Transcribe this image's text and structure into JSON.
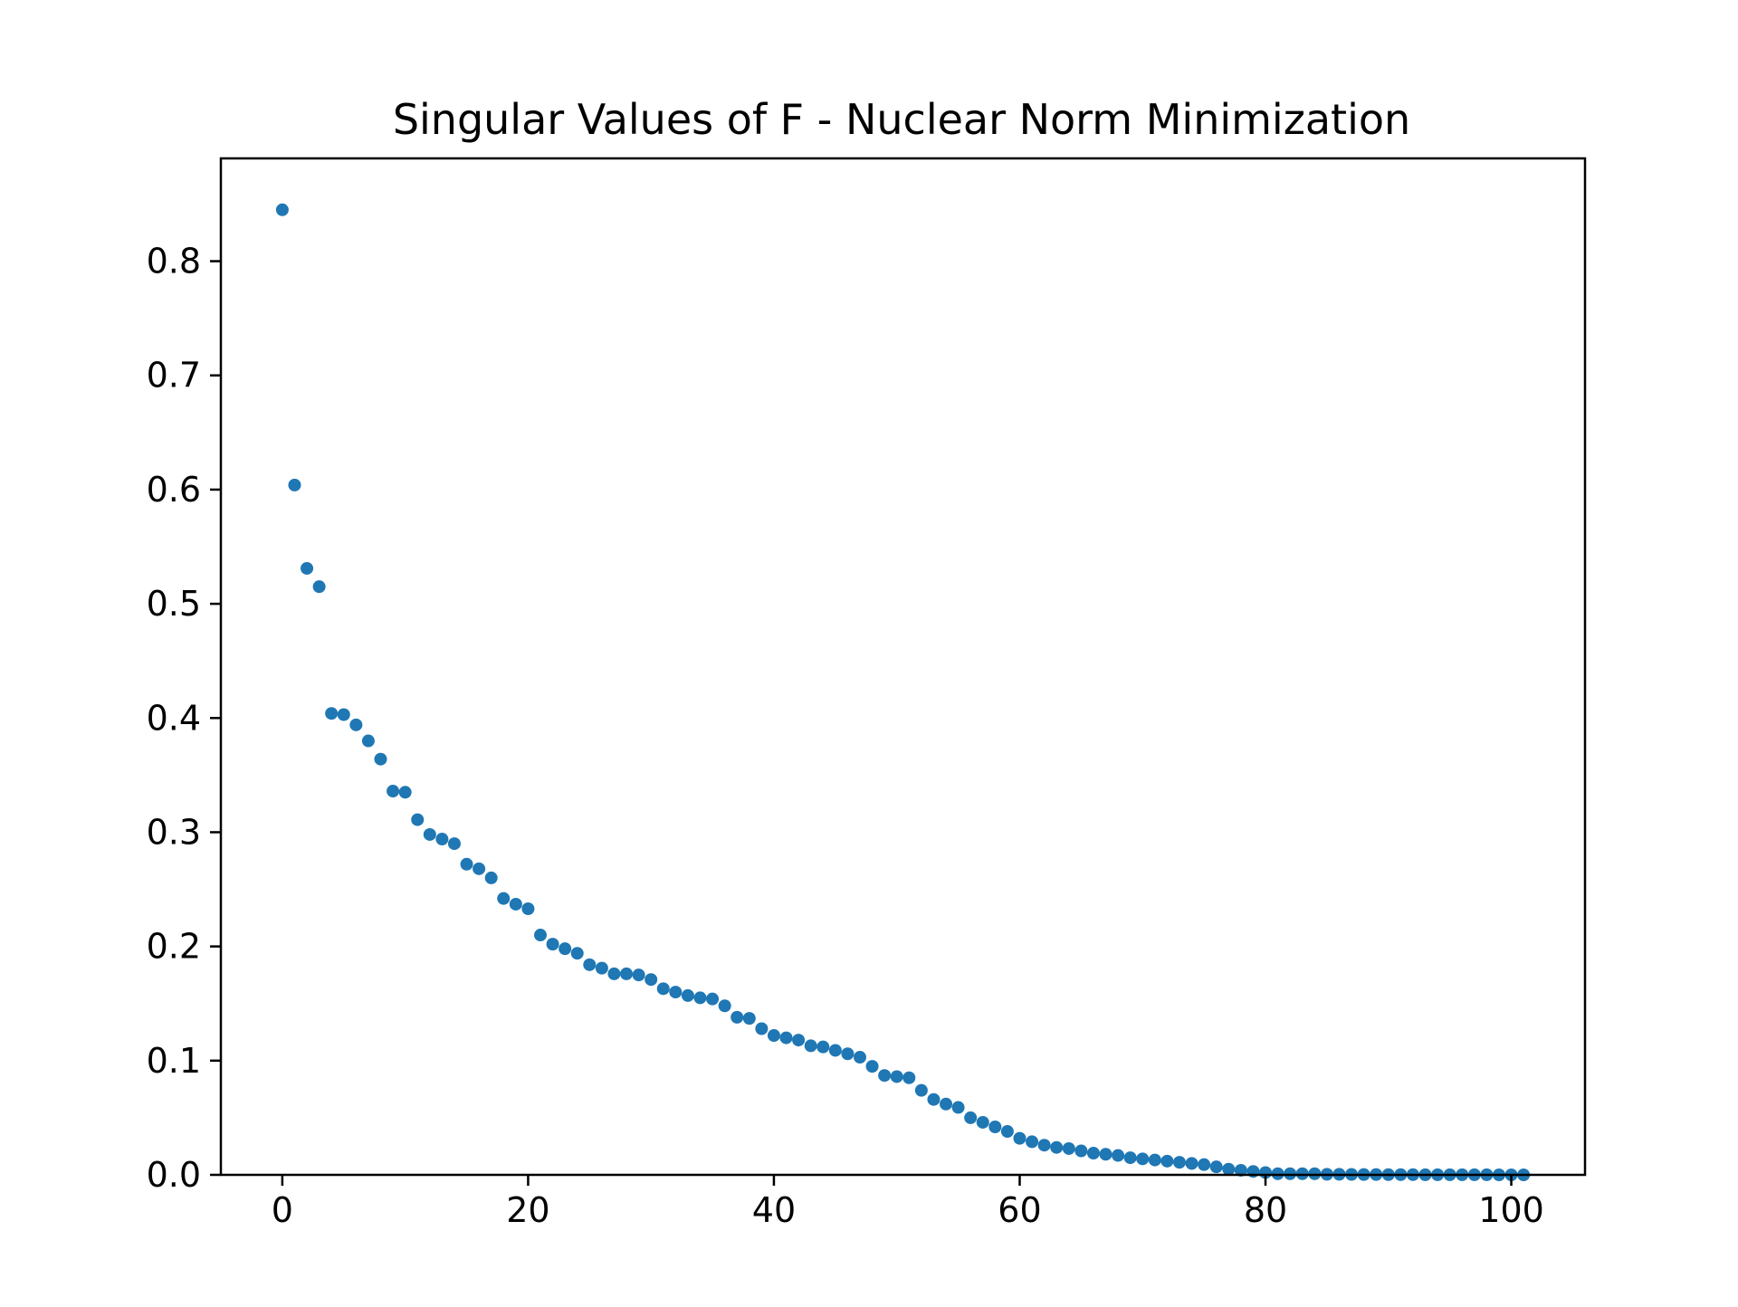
{
  "chart_data": {
    "type": "scatter",
    "title": "Singular Values of F - Nuclear Norm Minimization",
    "xlabel": "",
    "ylabel": "",
    "xlim": [
      -5,
      106
    ],
    "ylim": [
      0,
      0.89
    ],
    "xticks": [
      0,
      20,
      40,
      60,
      80,
      100
    ],
    "yticks": [
      0.0,
      0.1,
      0.2,
      0.3,
      0.4,
      0.5,
      0.6,
      0.7,
      0.8
    ],
    "xtick_labels": [
      "0",
      "20",
      "40",
      "60",
      "80",
      "100"
    ],
    "ytick_labels": [
      "0.0",
      "0.1",
      "0.2",
      "0.3",
      "0.4",
      "0.5",
      "0.6",
      "0.7",
      "0.8"
    ],
    "grid": false,
    "legend": "none",
    "marker_color": "#1f77b4",
    "series": [
      {
        "x": [
          0,
          1,
          2,
          3,
          4,
          5,
          6,
          7,
          8,
          9,
          10,
          11,
          12,
          13,
          14,
          15,
          16,
          17,
          18,
          19,
          20,
          21,
          22,
          23,
          24,
          25,
          26,
          27,
          28,
          29,
          30,
          31,
          32,
          33,
          34,
          35,
          36,
          37,
          38,
          39,
          40,
          41,
          42,
          43,
          44,
          45,
          46,
          47,
          48,
          49,
          50,
          51,
          52,
          53,
          54,
          55,
          56,
          57,
          58,
          59,
          60,
          61,
          62,
          63,
          64,
          65,
          66,
          67,
          68,
          69,
          70,
          71,
          72,
          73,
          74,
          75,
          76,
          77,
          78,
          79,
          80,
          81,
          82,
          83,
          84,
          85,
          86,
          87,
          88,
          89,
          90,
          91,
          92,
          93,
          94,
          95,
          96,
          97,
          98,
          99,
          100,
          101
        ],
        "y": [
          0.845,
          0.604,
          0.531,
          0.515,
          0.404,
          0.403,
          0.394,
          0.38,
          0.364,
          0.336,
          0.335,
          0.311,
          0.298,
          0.294,
          0.29,
          0.272,
          0.268,
          0.26,
          0.242,
          0.237,
          0.233,
          0.21,
          0.202,
          0.198,
          0.194,
          0.184,
          0.181,
          0.176,
          0.176,
          0.175,
          0.171,
          0.163,
          0.16,
          0.157,
          0.155,
          0.154,
          0.148,
          0.138,
          0.137,
          0.128,
          0.122,
          0.12,
          0.118,
          0.113,
          0.112,
          0.109,
          0.106,
          0.103,
          0.095,
          0.087,
          0.086,
          0.085,
          0.074,
          0.066,
          0.062,
          0.059,
          0.05,
          0.046,
          0.042,
          0.038,
          0.032,
          0.029,
          0.026,
          0.024,
          0.023,
          0.021,
          0.019,
          0.018,
          0.017,
          0.015,
          0.014,
          0.013,
          0.012,
          0.011,
          0.01,
          0.009,
          0.007,
          0.005,
          0.004,
          0.003,
          0.002,
          0.001,
          0.001,
          0.001,
          0.001,
          0.0005,
          0.0005,
          0.0004,
          0.0003,
          0.0003,
          0.0002,
          0.0002,
          0.0002,
          0.0001,
          0.0001,
          0.0001,
          0.0001,
          0.0001,
          0.0001,
          0.0,
          0.0,
          0.0
        ]
      }
    ]
  }
}
